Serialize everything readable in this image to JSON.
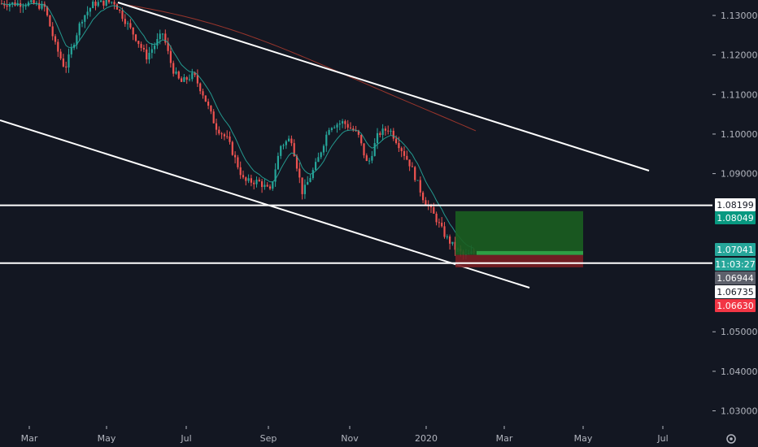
{
  "chart_data": {
    "type": "candlestick",
    "instrument_note": "",
    "x_axis": {
      "labels": [
        "Mar",
        "May",
        "Jul",
        "Sep",
        "Nov",
        "2020",
        "Mar",
        "May",
        "Jul"
      ]
    },
    "y_axis": {
      "ticks": [
        "1.13000",
        "1.12000",
        "1.11000",
        "1.10000",
        "1.09000",
        "1.05000",
        "1.04000",
        "1.03000"
      ],
      "range": [
        1.025,
        1.1335
      ]
    },
    "price_labels": [
      {
        "text": "1.08199",
        "kind": "horizontal-line",
        "bg": "#ffffff",
        "fg": "#131722"
      },
      {
        "text": "1.08049",
        "kind": "take-profit",
        "bg": "#089981",
        "fg": "#ffffff"
      },
      {
        "text": "1.07041",
        "kind": "last-close",
        "bg": "#26a69a",
        "fg": "#ffffff"
      },
      {
        "text": "11:03:27",
        "kind": "countdown",
        "bg": "#26a69a",
        "fg": "#ffffff"
      },
      {
        "text": "1.06944",
        "kind": "entry",
        "bg": "#5d606b",
        "fg": "#ffffff"
      },
      {
        "text": "1.06735",
        "kind": "horizontal-line",
        "bg": "#ffffff",
        "fg": "#131722"
      },
      {
        "text": "1.06630",
        "kind": "stop-loss",
        "bg": "#f23645",
        "fg": "#ffffff"
      }
    ],
    "horizontal_lines": [
      1.08199,
      1.06735
    ],
    "long_position": {
      "entry": 1.06944,
      "take_profit": 1.08049,
      "stop_loss": 1.0663
    },
    "last_price": 1.07041,
    "colors": {
      "background": "#131722",
      "up": "#26a69a",
      "down": "#ef5350",
      "ema_fast": "#26a69a",
      "ema_slow": "#b23b2e",
      "profit_zone": "#1b5e20",
      "loss_zone": "#7a1e24"
    }
  }
}
